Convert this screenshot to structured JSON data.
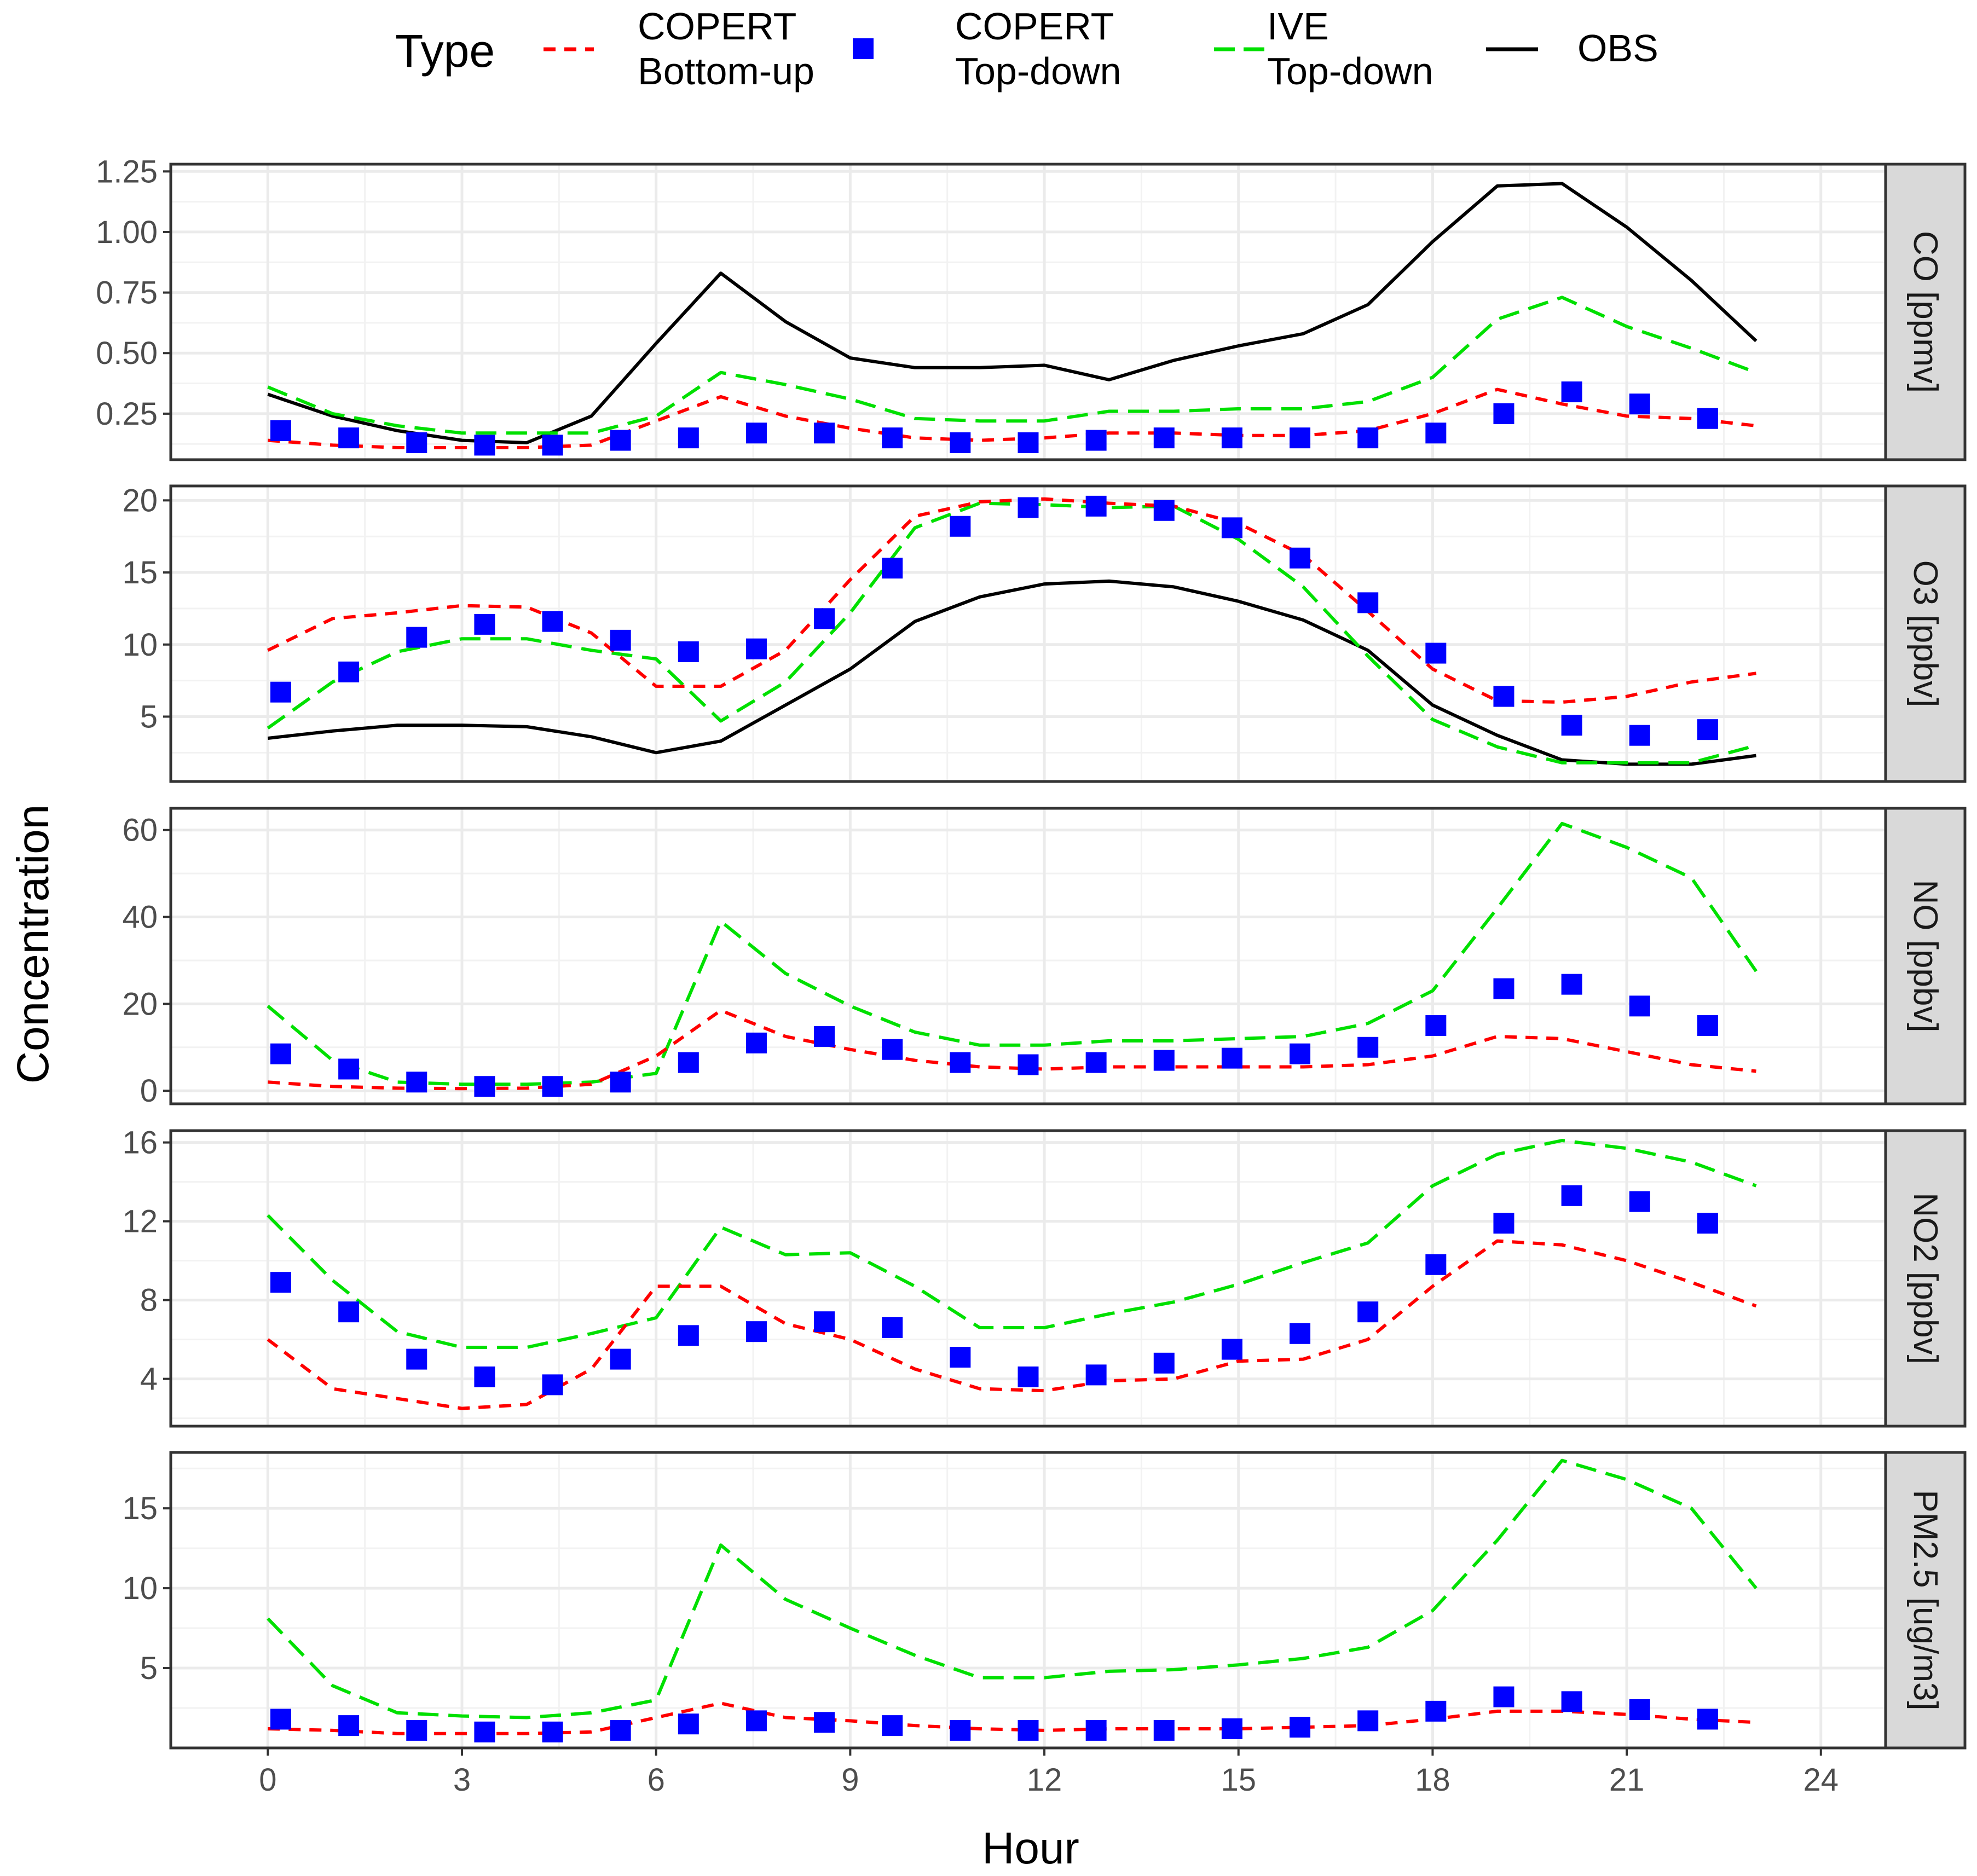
{
  "chart_data": {
    "type": "line",
    "xlabel": "Hour",
    "ylabel": "Concentration",
    "xlim": [
      -1.5,
      25
    ],
    "xticks": [
      0,
      3,
      6,
      9,
      12,
      15,
      18,
      21,
      24
    ],
    "legend": {
      "title": "Type",
      "position": "top",
      "entries": [
        {
          "key": "copert_bu",
          "label_line1": "COPERT",
          "label_line2": "Bottom-up",
          "style": "dashed-line",
          "color": "#ff0000"
        },
        {
          "key": "copert_td",
          "label_line1": "COPERT",
          "label_line2": "Top-down",
          "style": "square-points",
          "color": "#0000ff"
        },
        {
          "key": "ive_td",
          "label_line1": "IVE",
          "label_line2": "Top-down",
          "style": "long-dashed-line",
          "color": "#00e000"
        },
        {
          "key": "obs",
          "label_line1": "OBS",
          "label_line2": "",
          "style": "solid-line",
          "color": "#000000"
        }
      ]
    },
    "panels": [
      {
        "name": "CO [ppmv]",
        "ylim": [
          0.06,
          1.28
        ],
        "yticks": [
          0.25,
          0.5,
          0.75,
          1.0,
          1.25
        ],
        "ytick_labels": [
          "0.25",
          "0.50",
          "0.75",
          "1.00",
          "1.25"
        ],
        "copert_bu_x": [
          0,
          1,
          2,
          3,
          4,
          5,
          6,
          7,
          8,
          9,
          10,
          11,
          12,
          13,
          14,
          15,
          16,
          17,
          18,
          19,
          20,
          21,
          22,
          23
        ],
        "copert_bu": [
          0.14,
          0.12,
          0.11,
          0.11,
          0.11,
          0.12,
          0.22,
          0.32,
          0.24,
          0.19,
          0.15,
          0.14,
          0.15,
          0.17,
          0.17,
          0.16,
          0.16,
          0.18,
          0.25,
          0.35,
          0.29,
          0.24,
          0.23,
          0.2
        ],
        "copert_td_x": [
          0.2,
          1.25,
          2.3,
          3.35,
          4.4,
          5.45,
          6.5,
          7.55,
          8.6,
          9.65,
          10.7,
          11.75,
          12.8,
          13.85,
          14.9,
          15.95,
          17.0,
          18.05,
          19.1,
          20.15,
          21.2,
          22.25
        ],
        "copert_td": [
          0.18,
          0.15,
          0.13,
          0.12,
          0.12,
          0.14,
          0.15,
          0.17,
          0.17,
          0.15,
          0.13,
          0.13,
          0.14,
          0.15,
          0.15,
          0.15,
          0.15,
          0.17,
          0.25,
          0.34,
          0.29,
          0.23
        ],
        "ive_td_x": [
          0,
          1,
          2,
          3,
          4,
          5,
          6,
          7,
          8,
          9,
          10,
          11,
          12,
          13,
          14,
          15,
          16,
          17,
          18,
          19,
          20,
          21,
          22,
          23
        ],
        "ive_td": [
          0.36,
          0.25,
          0.2,
          0.17,
          0.17,
          0.17,
          0.24,
          0.42,
          0.37,
          0.31,
          0.23,
          0.22,
          0.22,
          0.26,
          0.26,
          0.27,
          0.27,
          0.3,
          0.4,
          0.64,
          0.73,
          0.61,
          0.52,
          0.42
        ],
        "obs_x": [
          0,
          1,
          2,
          3,
          4,
          5,
          6,
          7,
          8,
          9,
          10,
          11,
          12,
          13,
          14,
          15,
          16,
          17,
          18,
          19,
          20,
          21,
          22,
          23
        ],
        "obs": [
          0.33,
          0.24,
          0.18,
          0.14,
          0.13,
          0.24,
          0.54,
          0.83,
          0.63,
          0.48,
          0.44,
          0.44,
          0.45,
          0.39,
          0.47,
          0.53,
          0.58,
          0.7,
          0.96,
          1.19,
          1.2,
          1.02,
          0.8,
          0.55
        ]
      },
      {
        "name": "O3 [ppbv]",
        "ylim": [
          0.5,
          21.0
        ],
        "yticks": [
          5,
          10,
          15,
          20
        ],
        "ytick_labels": [
          "5",
          "10",
          "15",
          "20"
        ],
        "copert_bu_x": [
          0,
          1,
          2,
          3,
          4,
          5,
          6,
          7,
          8,
          9,
          10,
          11,
          12,
          13,
          14,
          15,
          16,
          17,
          18,
          19,
          20,
          21,
          22,
          23
        ],
        "copert_bu": [
          9.6,
          11.8,
          12.2,
          12.7,
          12.6,
          10.8,
          7.1,
          7.1,
          9.6,
          14.5,
          18.9,
          19.9,
          20.1,
          19.8,
          19.6,
          18.4,
          16.2,
          12.3,
          8.3,
          6.1,
          6.0,
          6.4,
          7.4,
          8.0
        ],
        "copert_td_x": [
          0.2,
          1.25,
          2.3,
          3.35,
          4.4,
          5.45,
          6.5,
          7.55,
          8.6,
          9.65,
          10.7,
          11.75,
          12.8,
          13.85,
          14.9,
          15.95,
          17.0,
          18.05,
          19.1,
          20.15,
          21.2,
          22.25
        ],
        "copert_td": [
          6.7,
          8.1,
          10.5,
          11.4,
          11.6,
          10.3,
          9.5,
          9.7,
          11.8,
          15.3,
          18.2,
          19.5,
          19.6,
          19.3,
          18.1,
          16.0,
          12.9,
          9.4,
          6.4,
          4.4,
          3.7,
          4.1
        ],
        "ive_td_x": [
          0,
          1,
          2,
          3,
          4,
          5,
          6,
          7,
          8,
          9,
          10,
          11,
          12,
          13,
          14,
          15,
          16,
          17,
          18,
          19,
          20,
          21,
          22,
          23
        ],
        "ive_td": [
          4.2,
          7.4,
          9.5,
          10.4,
          10.4,
          9.6,
          9.0,
          4.7,
          7.4,
          12.2,
          18.1,
          19.8,
          19.7,
          19.5,
          19.6,
          17.3,
          14.0,
          9.2,
          4.8,
          2.9,
          1.8,
          1.8,
          1.8,
          3.0
        ],
        "obs_x": [
          0,
          1,
          2,
          3,
          4,
          5,
          6,
          7,
          8,
          9,
          10,
          11,
          12,
          13,
          14,
          15,
          16,
          17,
          18,
          19,
          20,
          21,
          22,
          23
        ],
        "obs": [
          3.5,
          4.0,
          4.4,
          4.4,
          4.3,
          3.6,
          2.5,
          3.3,
          5.8,
          8.3,
          11.6,
          13.3,
          14.2,
          14.4,
          14.0,
          13.0,
          11.7,
          9.6,
          5.8,
          3.7,
          2.0,
          1.7,
          1.7,
          2.3
        ]
      },
      {
        "name": "NO [ppbv]",
        "ylim": [
          -3,
          65
        ],
        "yticks": [
          0,
          20,
          40,
          60
        ],
        "ytick_labels": [
          "0",
          "20",
          "40",
          "60"
        ],
        "copert_bu_x": [
          0,
          1,
          2,
          3,
          4,
          5,
          6,
          7,
          8,
          9,
          10,
          11,
          12,
          13,
          14,
          15,
          16,
          17,
          18,
          19,
          20,
          21,
          22,
          23
        ],
        "copert_bu": [
          2.0,
          1.0,
          0.6,
          0.5,
          0.6,
          1.5,
          8.0,
          18.5,
          12.5,
          9.5,
          7.0,
          5.5,
          5.0,
          5.5,
          5.5,
          5.5,
          5.5,
          6.0,
          8.0,
          12.5,
          12.0,
          9.0,
          6.0,
          4.5
        ],
        "copert_td_x": [
          0.2,
          1.25,
          2.3,
          3.35,
          4.4,
          5.45,
          6.5,
          7.55,
          8.6,
          9.65,
          10.7,
          11.75,
          12.8,
          13.85,
          14.9,
          15.95,
          17.0,
          18.05,
          19.1,
          20.15,
          21.2,
          22.25
        ],
        "copert_td": [
          8.5,
          5.0,
          2.0,
          1.0,
          1.0,
          2.0,
          6.5,
          11.0,
          12.5,
          9.5,
          6.5,
          6.0,
          6.5,
          7.0,
          7.5,
          8.5,
          10.0,
          15.0,
          23.5,
          24.5,
          19.5,
          15.0
        ],
        "ive_td_x": [
          0,
          1,
          2,
          3,
          4,
          5,
          6,
          7,
          8,
          9,
          10,
          11,
          12,
          13,
          14,
          15,
          16,
          17,
          18,
          19,
          20,
          21,
          22,
          23
        ],
        "ive_td": [
          19.5,
          7.0,
          2.0,
          1.5,
          1.5,
          2.0,
          4.0,
          39.0,
          27.0,
          19.5,
          13.5,
          10.5,
          10.5,
          11.5,
          11.5,
          12.0,
          12.5,
          15.5,
          23.0,
          42.0,
          61.5,
          56.0,
          49.0,
          27.5
        ],
        "obs_x": [],
        "obs": []
      },
      {
        "name": "NO2 [ppbv]",
        "ylim": [
          1.6,
          16.6
        ],
        "yticks": [
          4,
          8,
          12,
          16
        ],
        "ytick_labels": [
          "4",
          "8",
          "12",
          "16"
        ],
        "copert_bu_x": [
          0,
          1,
          2,
          3,
          4,
          5,
          6,
          7,
          8,
          9,
          10,
          11,
          12,
          13,
          14,
          15,
          16,
          17,
          18,
          19,
          20,
          21,
          22,
          23
        ],
        "copert_bu": [
          6.0,
          3.5,
          3.0,
          2.5,
          2.7,
          4.5,
          8.7,
          8.7,
          6.8,
          6.0,
          4.5,
          3.5,
          3.4,
          3.9,
          4.0,
          4.9,
          5.0,
          6.0,
          8.7,
          11.0,
          10.8,
          10.0,
          8.9,
          7.7
        ],
        "copert_td_x": [
          0.2,
          1.25,
          2.3,
          3.35,
          4.4,
          5.45,
          6.5,
          7.55,
          8.6,
          9.65,
          10.7,
          11.75,
          12.8,
          13.85,
          14.9,
          15.95,
          17.0,
          18.05,
          19.1,
          20.15,
          21.2,
          22.25
        ],
        "copert_td": [
          8.9,
          7.4,
          5.0,
          4.1,
          3.7,
          5.0,
          6.2,
          6.4,
          6.9,
          6.6,
          5.1,
          4.1,
          4.2,
          4.8,
          5.5,
          6.3,
          7.4,
          9.8,
          11.9,
          13.3,
          13.0,
          11.9
        ],
        "ive_td_x": [
          0,
          1,
          2,
          3,
          4,
          5,
          6,
          7,
          8,
          9,
          10,
          11,
          12,
          13,
          14,
          15,
          16,
          17,
          18,
          19,
          20,
          21,
          22,
          23
        ],
        "ive_td": [
          12.3,
          9.0,
          6.4,
          5.6,
          5.6,
          6.3,
          7.1,
          11.7,
          10.3,
          10.4,
          8.7,
          6.6,
          6.6,
          7.3,
          7.9,
          8.8,
          9.9,
          10.9,
          13.8,
          15.4,
          16.1,
          15.7,
          15.0,
          13.8
        ],
        "obs_x": [],
        "obs": []
      },
      {
        "name": "PM2.5 [ug/m3]",
        "ylim": [
          0,
          18.5
        ],
        "yticks": [
          5,
          10,
          15
        ],
        "ytick_labels": [
          "5",
          "10",
          "15"
        ],
        "copert_bu_x": [
          0,
          1,
          2,
          3,
          4,
          5,
          6,
          7,
          8,
          9,
          10,
          11,
          12,
          13,
          14,
          15,
          16,
          17,
          18,
          19,
          20,
          21,
          22,
          23
        ],
        "copert_bu": [
          1.2,
          1.1,
          0.9,
          0.9,
          0.9,
          1.0,
          1.9,
          2.8,
          1.9,
          1.7,
          1.4,
          1.2,
          1.1,
          1.2,
          1.2,
          1.2,
          1.3,
          1.4,
          1.8,
          2.3,
          2.3,
          2.1,
          1.8,
          1.6
        ],
        "copert_td_x": [
          0.2,
          1.25,
          2.3,
          3.35,
          4.4,
          5.45,
          6.5,
          7.55,
          8.6,
          9.65,
          10.7,
          11.75,
          12.8,
          13.85,
          14.9,
          15.95,
          17.0,
          18.05,
          19.1,
          20.15,
          21.2,
          22.25
        ],
        "copert_td": [
          1.8,
          1.4,
          1.1,
          1.0,
          1.0,
          1.1,
          1.5,
          1.7,
          1.6,
          1.4,
          1.1,
          1.1,
          1.1,
          1.1,
          1.2,
          1.3,
          1.7,
          2.3,
          3.2,
          2.9,
          2.4,
          1.8
        ],
        "ive_td_x": [
          0,
          1,
          2,
          3,
          4,
          5,
          6,
          7,
          8,
          9,
          10,
          11,
          12,
          13,
          14,
          15,
          16,
          17,
          18,
          19,
          20,
          21,
          22,
          23
        ],
        "ive_td": [
          8.1,
          3.9,
          2.2,
          2.0,
          1.9,
          2.2,
          3.0,
          12.7,
          9.3,
          7.5,
          5.8,
          4.4,
          4.4,
          4.8,
          4.9,
          5.2,
          5.6,
          6.3,
          8.6,
          13.0,
          18.0,
          16.8,
          15.0,
          10.0
        ],
        "obs_x": [],
        "obs": []
      }
    ]
  }
}
